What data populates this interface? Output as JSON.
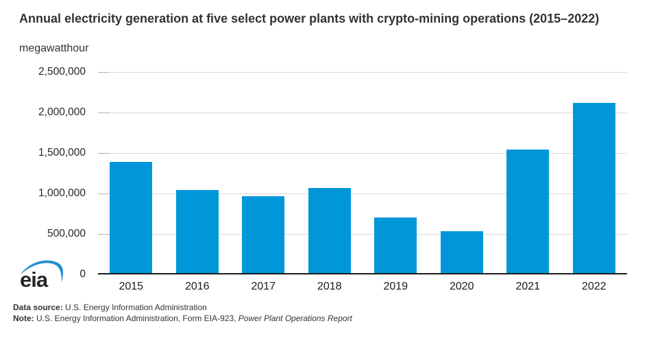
{
  "header": {
    "title": "Annual electricity generation at five select power plants with crypto-mining operations (2015–2022)",
    "unit": "megawatthour"
  },
  "chart_data": {
    "type": "bar",
    "title": "Annual electricity generation at five select power plants with crypto-mining operations (2015–2022)",
    "categories": [
      "2015",
      "2016",
      "2017",
      "2018",
      "2019",
      "2020",
      "2021",
      "2022"
    ],
    "values": [
      1390000,
      1040000,
      965000,
      1070000,
      700000,
      530000,
      1545000,
      2115000
    ],
    "xlabel": "",
    "ylabel": "megawatthour",
    "ylim": [
      0,
      2500000
    ],
    "ytick_step": 500000,
    "grid": true,
    "legend": "none"
  },
  "colors": {
    "bar": "#0096d7",
    "gridline": "#d9d9d9",
    "tick": "#b0b0b0",
    "axis": "#1a1a1a",
    "logo_blue": "#2191d0",
    "logo_text": "#262626"
  },
  "logo": {
    "text": "eia"
  },
  "footer": {
    "source_label": "Data source:",
    "source_text": " U.S. Energy Information Administration",
    "note_label": "Note:",
    "note_text": " U.S. Energy Information Administration, Form EIA-923, ",
    "note_italic": "Power Plant Operations Report"
  }
}
